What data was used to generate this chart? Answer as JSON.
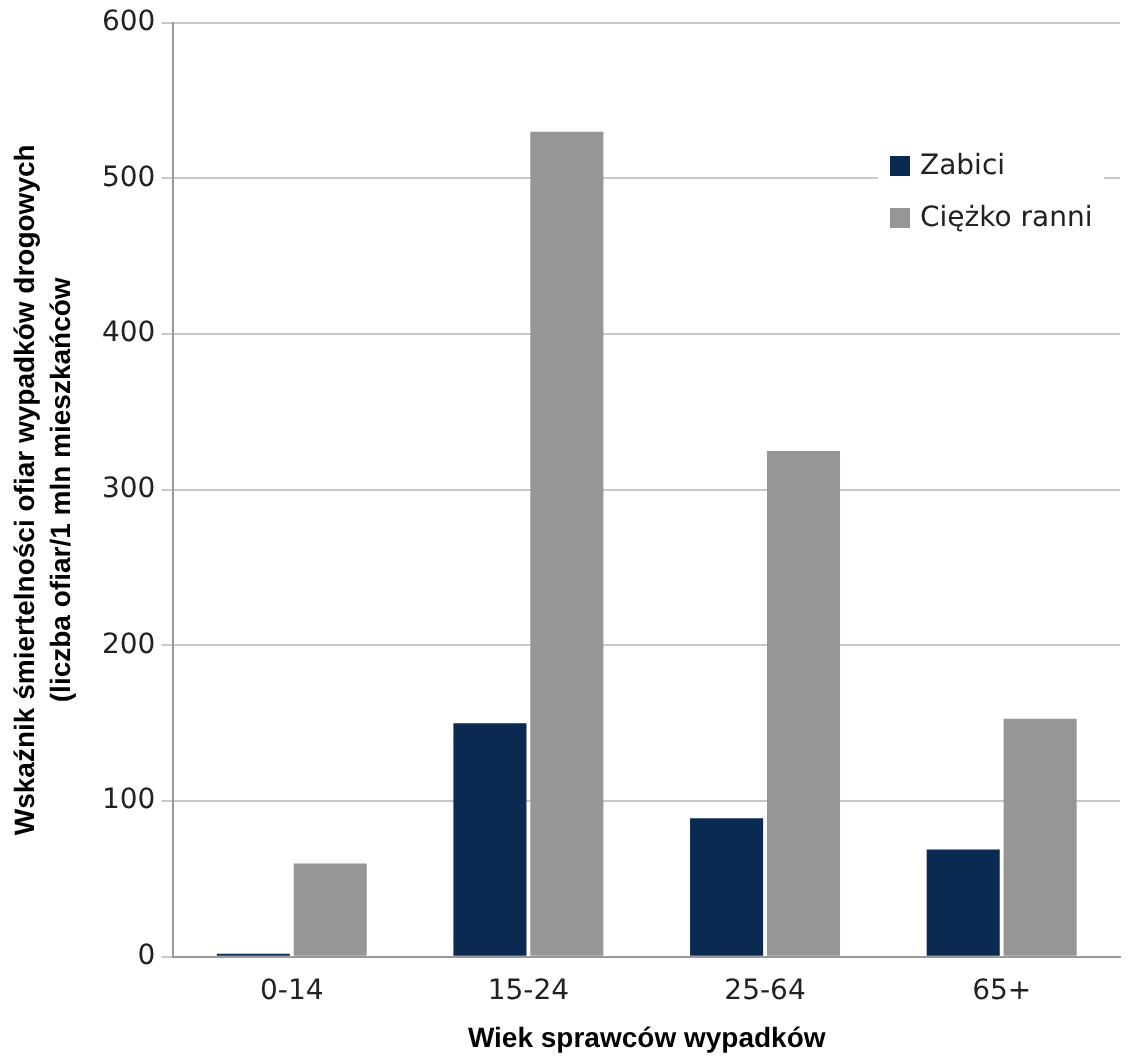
{
  "chart_data": {
    "type": "bar",
    "xlabel": "Wiek sprawców wypadków",
    "ylabel": "Wskaźnik śmiertelności ofiar wypadków drogowych (liczba ofiar/1 mln mieszkańców",
    "categories": [
      "0-14",
      "15-24",
      "25-64",
      "65+"
    ],
    "series": [
      {
        "name": "Zabici",
        "color": "#0b2a52",
        "values": [
          2,
          150,
          89,
          69
        ]
      },
      {
        "name": "Ciężko ranni",
        "color": "#969696",
        "values": [
          60,
          530,
          325,
          153
        ]
      }
    ],
    "ylim": [
      0,
      600
    ],
    "yticks": [
      0,
      100,
      200,
      300,
      400,
      500,
      600
    ],
    "grid": "y",
    "legend": "top right"
  }
}
